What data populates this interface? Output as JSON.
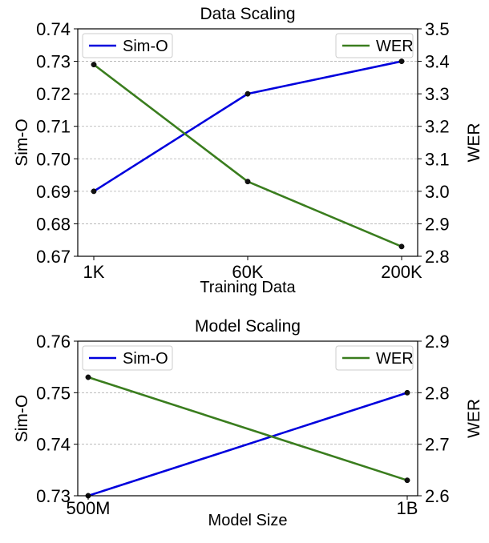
{
  "chart_data": [
    {
      "type": "line",
      "title": "Data Scaling",
      "xlabel": "Training Data",
      "categories": [
        "1K",
        "60K",
        "200K"
      ],
      "left_axis": {
        "label": "Sim-O",
        "ylim": [
          0.67,
          0.74
        ],
        "ticks": [
          "0.67",
          "0.68",
          "0.69",
          "0.70",
          "0.71",
          "0.72",
          "0.73",
          "0.74"
        ]
      },
      "right_axis": {
        "label": "WER",
        "ylim": [
          2.8,
          3.5
        ],
        "ticks": [
          "2.8",
          "2.9",
          "3.0",
          "3.1",
          "3.2",
          "3.3",
          "3.4",
          "3.5"
        ]
      },
      "grid": "horizontal dashed",
      "series": [
        {
          "name": "Sim-O",
          "axis": "left",
          "color": "#0000dd",
          "values": [
            0.69,
            0.72,
            0.73
          ]
        },
        {
          "name": "WER",
          "axis": "right",
          "color": "#3a7d1e",
          "values": [
            3.39,
            3.03,
            2.83
          ]
        }
      ],
      "legend": [
        {
          "name": "Sim-O",
          "placement": "top-left"
        },
        {
          "name": "WER",
          "placement": "top-right"
        }
      ]
    },
    {
      "type": "line",
      "title": "Model Scaling",
      "xlabel": "Model Size",
      "categories": [
        "500M",
        "1B"
      ],
      "left_axis": {
        "label": "Sim-O",
        "ylim": [
          0.73,
          0.76
        ],
        "ticks": [
          "0.73",
          "0.74",
          "0.75",
          "0.76"
        ]
      },
      "right_axis": {
        "label": "WER",
        "ylim": [
          2.6,
          2.9
        ],
        "ticks": [
          "2.6",
          "2.7",
          "2.8",
          "2.9"
        ]
      },
      "grid": "horizontal dashed",
      "series": [
        {
          "name": "Sim-O",
          "axis": "left",
          "color": "#0000dd",
          "values": [
            0.73,
            0.75
          ]
        },
        {
          "name": "WER",
          "axis": "right",
          "color": "#3a7d1e",
          "values": [
            2.83,
            2.63
          ]
        }
      ],
      "legend": [
        {
          "name": "Sim-O",
          "placement": "top-left"
        },
        {
          "name": "WER",
          "placement": "top-right"
        }
      ]
    }
  ]
}
